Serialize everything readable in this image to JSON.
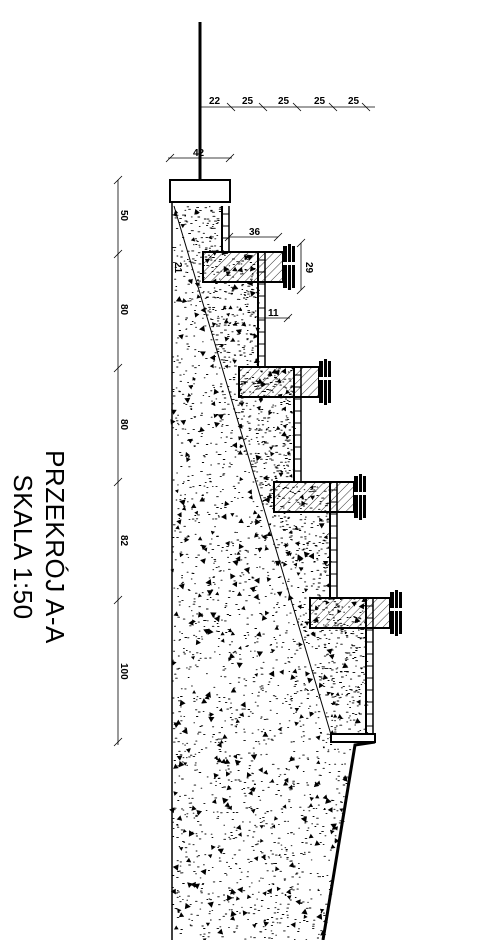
{
  "drawing": {
    "title": "PRZEKRÓJ A-A",
    "scale": "SKALA 1:50",
    "top_dimensions": [
      "22",
      "25",
      "25",
      "25",
      "25"
    ],
    "cap_width": "42",
    "step_width": "36",
    "step_height": "29",
    "wall_thickness": "11",
    "slope_label": "21",
    "left_dimensions": [
      "50",
      "80",
      "80",
      "82",
      "100"
    ]
  },
  "colors": {
    "line": "#000000",
    "background": "#ffffff"
  }
}
